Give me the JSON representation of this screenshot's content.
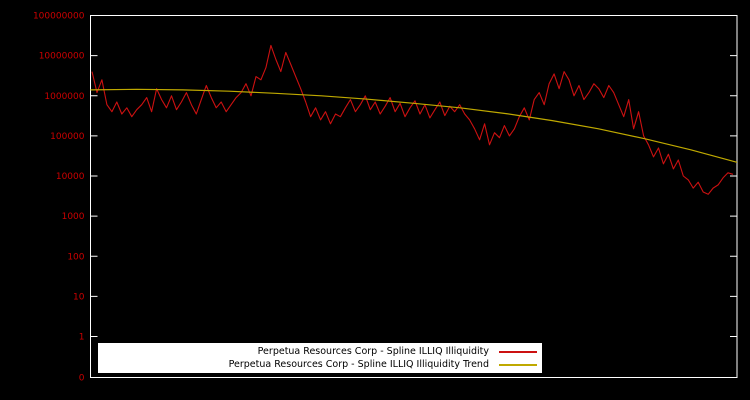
{
  "chart_data": {
    "type": "line",
    "title": "",
    "background_color": "#000000",
    "frame_color": "#ffffff",
    "legend_position": "bottom-center",
    "x_axis": {
      "tick_labels_visible": false
    },
    "y_axis": {
      "scale": "log",
      "label_color": "#cc0000",
      "tick_labels": [
        "100000000",
        "10000000",
        "1000000",
        "100000",
        "10000",
        "1000",
        "100",
        "10",
        "1",
        "0"
      ],
      "ticks": [
        {
          "label": "100000000",
          "value": 100000000
        },
        {
          "label": "10000000",
          "value": 10000000
        },
        {
          "label": "1000000",
          "value": 1000000
        },
        {
          "label": "100000",
          "value": 100000
        },
        {
          "label": "10000",
          "value": 10000
        },
        {
          "label": "1000",
          "value": 1000
        },
        {
          "label": "100",
          "value": 100
        },
        {
          "label": "10",
          "value": 10
        },
        {
          "label": "1",
          "value": 1
        },
        {
          "label": "0",
          "value": 0
        }
      ]
    },
    "series": [
      {
        "name": "Perpetua Resources Corp - Spline ILLIQ Illiquidity",
        "color": "#cc1111",
        "values": [
          4000000,
          1200000,
          2500000,
          600000,
          400000,
          700000,
          350000,
          500000,
          300000,
          450000,
          600000,
          900000,
          400000,
          1500000,
          800000,
          500000,
          1000000,
          450000,
          700000,
          1200000,
          600000,
          350000,
          800000,
          1800000,
          900000,
          500000,
          700000,
          400000,
          600000,
          900000,
          1200000,
          2000000,
          1000000,
          3000000,
          2500000,
          5000000,
          18000000,
          8000000,
          4000000,
          12000000,
          6000000,
          3000000,
          1500000,
          700000,
          300000,
          500000,
          250000,
          400000,
          200000,
          350000,
          300000,
          500000,
          800000,
          400000,
          600000,
          1000000,
          450000,
          700000,
          350000,
          550000,
          900000,
          400000,
          650000,
          300000,
          500000,
          750000,
          350000,
          600000,
          280000,
          450000,
          700000,
          320000,
          550000,
          400000,
          600000,
          350000,
          250000,
          150000,
          80000,
          200000,
          60000,
          120000,
          90000,
          180000,
          100000,
          150000,
          300000,
          500000,
          250000,
          800000,
          1200000,
          600000,
          2000000,
          3500000,
          1500000,
          4000000,
          2500000,
          1000000,
          1800000,
          800000,
          1200000,
          2000000,
          1500000,
          900000,
          1800000,
          1200000,
          600000,
          300000,
          800000,
          150000,
          400000,
          100000,
          60000,
          30000,
          50000,
          20000,
          35000,
          15000,
          25000,
          10000,
          8000,
          5000,
          7000,
          4000,
          3500,
          5000,
          6000,
          9000,
          12000,
          11000
        ]
      },
      {
        "name": "Perpetua Resources Corp - Spline ILLIQ Illiquidity Trend",
        "color": "#bfa900",
        "values": [
          1400000,
          1450000,
          1400000,
          1300000,
          1150000,
          1000000,
          820000,
          650000,
          500000,
          360000,
          240000,
          150000,
          85000,
          45000,
          22000
        ]
      }
    ]
  }
}
